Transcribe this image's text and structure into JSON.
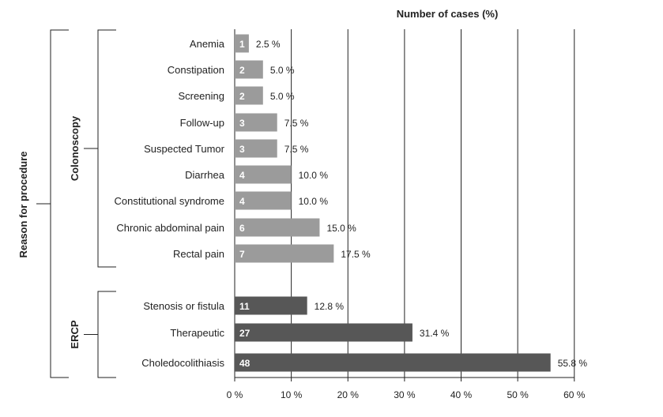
{
  "chart_data": {
    "type": "bar",
    "orientation": "horizontal",
    "title": "Number of cases (%)",
    "xlabel": "Number of cases (%)",
    "ylabel": "Reason for procedure",
    "xlim": [
      0,
      60
    ],
    "xticks": [
      "0 %",
      "10 %",
      "20 %",
      "30 %",
      "40 %",
      "50 %",
      "60 %"
    ],
    "grid": "vertical lines at each tick",
    "groups": [
      {
        "name": "Colonoscopy",
        "color": "#9b9b9b",
        "items": [
          {
            "label": "Anemia",
            "count": "1",
            "percent": 2.5,
            "percent_label": "2.5 %"
          },
          {
            "label": "Constipation",
            "count": "2",
            "percent": 5.0,
            "percent_label": "5.0 %"
          },
          {
            "label": "Screening",
            "count": "2",
            "percent": 5.0,
            "percent_label": "5.0 %"
          },
          {
            "label": "Follow-up",
            "count": "3",
            "percent": 7.5,
            "percent_label": "7.5 %"
          },
          {
            "label": "Suspected Tumor",
            "count": "3",
            "percent": 7.5,
            "percent_label": "7.5 %"
          },
          {
            "label": "Diarrhea",
            "count": "4",
            "percent": 10.0,
            "percent_label": "10.0 %"
          },
          {
            "label": "Constitutional syndrome",
            "count": "4",
            "percent": 10.0,
            "percent_label": "10.0 %"
          },
          {
            "label": "Chronic abdominal pain",
            "count": "6",
            "percent": 15.0,
            "percent_label": "15.0 %"
          },
          {
            "label": "Rectal pain",
            "count": "7",
            "percent": 17.5,
            "percent_label": "17.5 %"
          }
        ]
      },
      {
        "name": "ERCP",
        "color": "#575757",
        "items": [
          {
            "label": "Stenosis or fistula",
            "count": "11",
            "percent": 12.8,
            "percent_label": "12.8 %"
          },
          {
            "label": "Therapeutic",
            "count": "27",
            "percent": 31.4,
            "percent_label": "31.4 %"
          },
          {
            "label": "Choledocolithiasis",
            "count": "48",
            "percent": 55.8,
            "percent_label": "55.8 %"
          }
        ]
      }
    ]
  }
}
